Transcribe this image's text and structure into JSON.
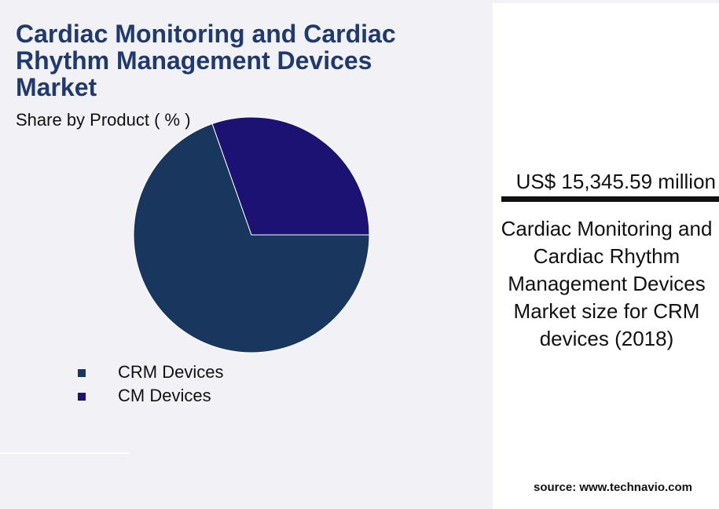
{
  "chart_data": {
    "type": "pie",
    "title": "Cardiac Monitoring and Cardiac Rhythm Management Devices Market",
    "subtitle": "Share by Product ( % )",
    "categories": [
      "CRM Devices",
      "CM Devices"
    ],
    "values": [
      69.6,
      30.4
    ],
    "colors": [
      "#19365f",
      "#1c1274"
    ]
  },
  "callout": {
    "value_text": "US$ 15,345.59 million",
    "description": "Cardiac Monitoring and Cardiac Rhythm Management Devices Market size for CRM devices (2018)"
  },
  "source": "source: www.technavio.com"
}
